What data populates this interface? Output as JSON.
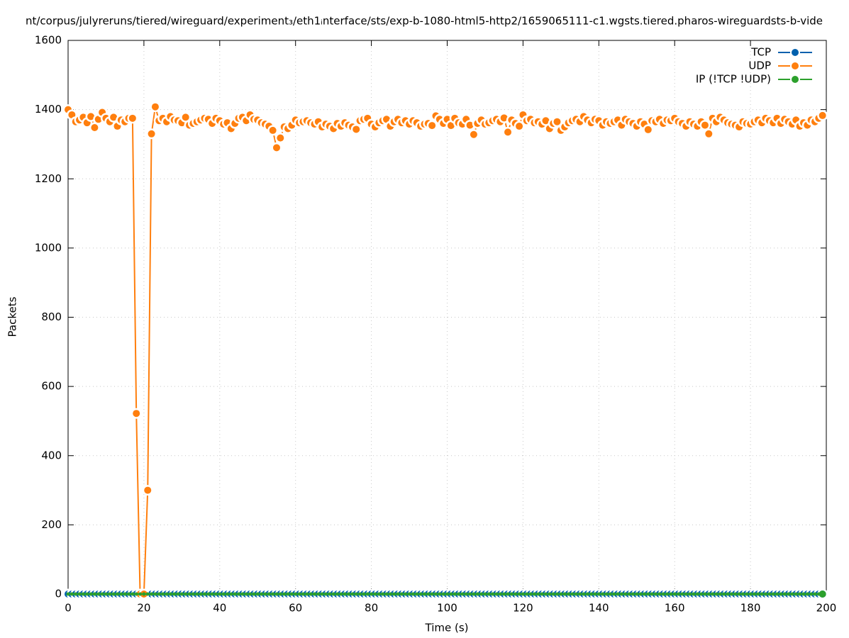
{
  "chart_data": {
    "type": "line",
    "title": "nt/corpus/julyreruns/tiered/wireguard/experiment₃/eth1ᵢnterface/sts/exp-b-1080-html5-http2/1659065111-c1.wgsts.tiered.pharos-wireguardsts-b-vide",
    "xlabel": "Time (s)",
    "ylabel": "Packets",
    "xlim": [
      0,
      200
    ],
    "xticks": [
      0,
      20,
      40,
      60,
      80,
      100,
      120,
      140,
      160,
      180,
      200
    ],
    "ylim": [
      0,
      1600
    ],
    "yticks": [
      0,
      200,
      400,
      600,
      800,
      1000,
      1200,
      1400,
      1600
    ],
    "grid": true,
    "legend": "top-right",
    "x": [
      0,
      1,
      2,
      3,
      4,
      5,
      6,
      7,
      8,
      9,
      10,
      11,
      12,
      13,
      14,
      15,
      16,
      17,
      18,
      19,
      20,
      21,
      22,
      23,
      24,
      25,
      26,
      27,
      28,
      29,
      30,
      31,
      32,
      33,
      34,
      35,
      36,
      37,
      38,
      39,
      40,
      41,
      42,
      43,
      44,
      45,
      46,
      47,
      48,
      49,
      50,
      51,
      52,
      53,
      54,
      55,
      56,
      57,
      58,
      59,
      60,
      61,
      62,
      63,
      64,
      65,
      66,
      67,
      68,
      69,
      70,
      71,
      72,
      73,
      74,
      75,
      76,
      77,
      78,
      79,
      80,
      81,
      82,
      83,
      84,
      85,
      86,
      87,
      88,
      89,
      90,
      91,
      92,
      93,
      94,
      95,
      96,
      97,
      98,
      99,
      100,
      101,
      102,
      103,
      104,
      105,
      106,
      107,
      108,
      109,
      110,
      111,
      112,
      113,
      114,
      115,
      116,
      117,
      118,
      119,
      120,
      121,
      122,
      123,
      124,
      125,
      126,
      127,
      128,
      129,
      130,
      131,
      132,
      133,
      134,
      135,
      136,
      137,
      138,
      139,
      140,
      141,
      142,
      143,
      144,
      145,
      146,
      147,
      148,
      149,
      150,
      151,
      152,
      153,
      154,
      155,
      156,
      157,
      158,
      159,
      160,
      161,
      162,
      163,
      164,
      165,
      166,
      167,
      168,
      169,
      170,
      171,
      172,
      173,
      174,
      175,
      176,
      177,
      178,
      179,
      180,
      181,
      182,
      183,
      184,
      185,
      186,
      187,
      188,
      189,
      190,
      191,
      192,
      193,
      194,
      195,
      196,
      197,
      198,
      199
    ],
    "series": [
      {
        "name": "TCP",
        "color": "#0060ad",
        "values": [
          0,
          0,
          0,
          0,
          0,
          0,
          0,
          0,
          0,
          0,
          0,
          0,
          0,
          0,
          0,
          0,
          0,
          0,
          0,
          0,
          0,
          0,
          0,
          0,
          0,
          0,
          0,
          0,
          0,
          0,
          0,
          0,
          0,
          0,
          0,
          0,
          0,
          0,
          0,
          0,
          0,
          0,
          0,
          0,
          0,
          0,
          0,
          0,
          0,
          0,
          0,
          0,
          0,
          0,
          0,
          0,
          0,
          0,
          0,
          0,
          0,
          0,
          0,
          0,
          0,
          0,
          0,
          0,
          0,
          0,
          0,
          0,
          0,
          0,
          0,
          0,
          0,
          0,
          0,
          0,
          0,
          0,
          0,
          0,
          0,
          0,
          0,
          0,
          0,
          0,
          0,
          0,
          0,
          0,
          0,
          0,
          0,
          0,
          0,
          0,
          0,
          0,
          0,
          0,
          0,
          0,
          0,
          0,
          0,
          0,
          0,
          0,
          0,
          0,
          0,
          0,
          0,
          0,
          0,
          0,
          0,
          0,
          0,
          0,
          0,
          0,
          0,
          0,
          0,
          0,
          0,
          0,
          0,
          0,
          0,
          0,
          0,
          0,
          0,
          0,
          0,
          0,
          0,
          0,
          0,
          0,
          0,
          0,
          0,
          0,
          0,
          0,
          0,
          0,
          0,
          0,
          0,
          0,
          0,
          0,
          0,
          0,
          0,
          0,
          0,
          0,
          0,
          0,
          0,
          0,
          0,
          0,
          0,
          0,
          0,
          0,
          0,
          0,
          0,
          0,
          0,
          0,
          0,
          0,
          0,
          0,
          0,
          0,
          0,
          0,
          0,
          0,
          0,
          0,
          0,
          0,
          0,
          0,
          0,
          0
        ]
      },
      {
        "name": "UDP",
        "color": "#ff7f0e",
        "values": [
          1400,
          1385,
          1365,
          1370,
          1378,
          1362,
          1380,
          1348,
          1372,
          1392,
          1375,
          1365,
          1378,
          1352,
          1370,
          1365,
          1375,
          1375,
          522,
          0,
          0,
          300,
          1330,
          1408,
          1368,
          1375,
          1365,
          1380,
          1370,
          1368,
          1362,
          1378,
          1355,
          1360,
          1365,
          1370,
          1375,
          1372,
          1360,
          1375,
          1368,
          1358,
          1362,
          1345,
          1360,
          1375,
          1378,
          1368,
          1385,
          1372,
          1370,
          1362,
          1358,
          1352,
          1340,
          1290,
          1318,
          1350,
          1345,
          1355,
          1370,
          1362,
          1365,
          1368,
          1362,
          1358,
          1365,
          1350,
          1358,
          1352,
          1345,
          1360,
          1352,
          1362,
          1355,
          1350,
          1343,
          1368,
          1372,
          1375,
          1358,
          1350,
          1362,
          1368,
          1372,
          1352,
          1365,
          1372,
          1362,
          1368,
          1358,
          1368,
          1362,
          1352,
          1358,
          1360,
          1354,
          1382,
          1372,
          1360,
          1372,
          1354,
          1375,
          1362,
          1358,
          1372,
          1355,
          1328,
          1360,
          1370,
          1358,
          1362,
          1368,
          1372,
          1365,
          1376,
          1335,
          1370,
          1360,
          1352,
          1385,
          1368,
          1372,
          1362,
          1365,
          1358,
          1368,
          1345,
          1360,
          1365,
          1340,
          1350,
          1362,
          1368,
          1372,
          1365,
          1380,
          1370,
          1362,
          1372,
          1368,
          1355,
          1365,
          1360,
          1365,
          1370,
          1355,
          1372,
          1365,
          1360,
          1352,
          1365,
          1358,
          1342,
          1368,
          1365,
          1372,
          1360,
          1370,
          1368,
          1375,
          1365,
          1360,
          1352,
          1365,
          1358,
          1352,
          1365,
          1355,
          1330,
          1375,
          1365,
          1378,
          1370,
          1362,
          1358,
          1355,
          1350,
          1365,
          1360,
          1358,
          1365,
          1370,
          1362,
          1375,
          1368,
          1362,
          1375,
          1360,
          1372,
          1365,
          1358,
          1370,
          1352,
          1362,
          1355,
          1370,
          1365,
          1375,
          1383
        ]
      },
      {
        "name": "IP (!TCP  !UDP)",
        "color": "#2ca02c",
        "values": [
          0,
          0,
          0,
          0,
          0,
          0,
          0,
          0,
          0,
          0,
          0,
          0,
          0,
          0,
          0,
          0,
          0,
          0,
          0,
          0,
          0,
          0,
          0,
          0,
          0,
          0,
          0,
          0,
          0,
          0,
          0,
          0,
          0,
          0,
          0,
          0,
          0,
          0,
          0,
          0,
          0,
          0,
          0,
          0,
          0,
          0,
          0,
          0,
          0,
          0,
          0,
          0,
          0,
          0,
          0,
          0,
          0,
          0,
          0,
          0,
          0,
          0,
          0,
          0,
          0,
          0,
          0,
          0,
          0,
          0,
          0,
          0,
          0,
          0,
          0,
          0,
          0,
          0,
          0,
          0,
          0,
          0,
          0,
          0,
          0,
          0,
          0,
          0,
          0,
          0,
          0,
          0,
          0,
          0,
          0,
          0,
          0,
          0,
          0,
          0,
          0,
          0,
          0,
          0,
          0,
          0,
          0,
          0,
          0,
          0,
          0,
          0,
          0,
          0,
          0,
          0,
          0,
          0,
          0,
          0,
          0,
          0,
          0,
          0,
          0,
          0,
          0,
          0,
          0,
          0,
          0,
          0,
          0,
          0,
          0,
          0,
          0,
          0,
          0,
          0,
          0,
          0,
          0,
          0,
          0,
          0,
          0,
          0,
          0,
          0,
          0,
          0,
          0,
          0,
          0,
          0,
          0,
          0,
          0,
          0,
          0,
          0,
          0,
          0,
          0,
          0,
          0,
          0,
          0,
          0,
          0,
          0,
          0,
          0,
          0,
          0,
          0,
          0,
          0,
          0,
          0,
          0,
          0,
          0,
          0,
          0,
          0,
          0,
          0,
          0,
          0,
          0,
          0,
          0,
          0,
          0,
          0,
          0,
          0,
          0
        ]
      }
    ]
  }
}
